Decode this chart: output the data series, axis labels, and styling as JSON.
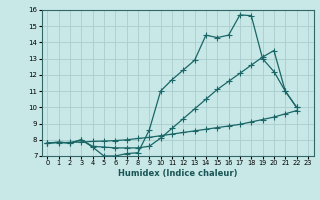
{
  "xlabel": "Humidex (Indice chaleur)",
  "xlim": [
    -0.5,
    23.5
  ],
  "ylim": [
    7,
    16
  ],
  "yticks": [
    7,
    8,
    9,
    10,
    11,
    12,
    13,
    14,
    15,
    16
  ],
  "xticks": [
    0,
    1,
    2,
    3,
    4,
    5,
    6,
    7,
    8,
    9,
    10,
    11,
    12,
    13,
    14,
    15,
    16,
    17,
    18,
    19,
    20,
    21,
    22,
    23
  ],
  "bg_color": "#c8e8e8",
  "grid_color": "#aacccc",
  "line_color": "#1a6666",
  "line1_x": [
    0,
    1,
    2,
    3,
    4,
    5,
    6,
    7,
    8,
    9,
    10,
    11,
    12,
    13,
    14,
    15,
    16,
    17,
    18,
    19,
    20,
    21,
    22
  ],
  "line1_y": [
    7.8,
    7.85,
    7.8,
    8.0,
    7.55,
    7.0,
    7.0,
    7.15,
    7.2,
    8.6,
    11.0,
    11.7,
    12.3,
    12.9,
    14.45,
    14.3,
    14.45,
    15.7,
    15.65,
    13.0,
    12.2,
    11.0,
    10.0
  ],
  "line2_x": [
    0,
    1,
    2,
    3,
    4,
    5,
    6,
    7,
    8,
    9,
    10,
    11,
    12,
    13,
    14,
    15,
    16,
    17,
    18,
    19,
    20,
    21,
    22
  ],
  "line2_y": [
    7.8,
    7.85,
    7.8,
    8.0,
    7.6,
    7.55,
    7.5,
    7.5,
    7.5,
    7.6,
    8.1,
    8.7,
    9.3,
    9.9,
    10.5,
    11.1,
    11.6,
    12.1,
    12.6,
    13.1,
    13.5,
    11.0,
    10.0
  ],
  "line3_x": [
    0,
    1,
    2,
    3,
    4,
    5,
    6,
    7,
    8,
    9,
    10,
    11,
    12,
    13,
    14,
    15,
    16,
    17,
    18,
    19,
    20,
    21,
    22
  ],
  "line3_y": [
    7.8,
    7.82,
    7.84,
    7.86,
    7.9,
    7.92,
    7.95,
    8.0,
    8.08,
    8.15,
    8.25,
    8.35,
    8.45,
    8.55,
    8.65,
    8.75,
    8.85,
    8.95,
    9.1,
    9.25,
    9.4,
    9.6,
    9.8
  ]
}
